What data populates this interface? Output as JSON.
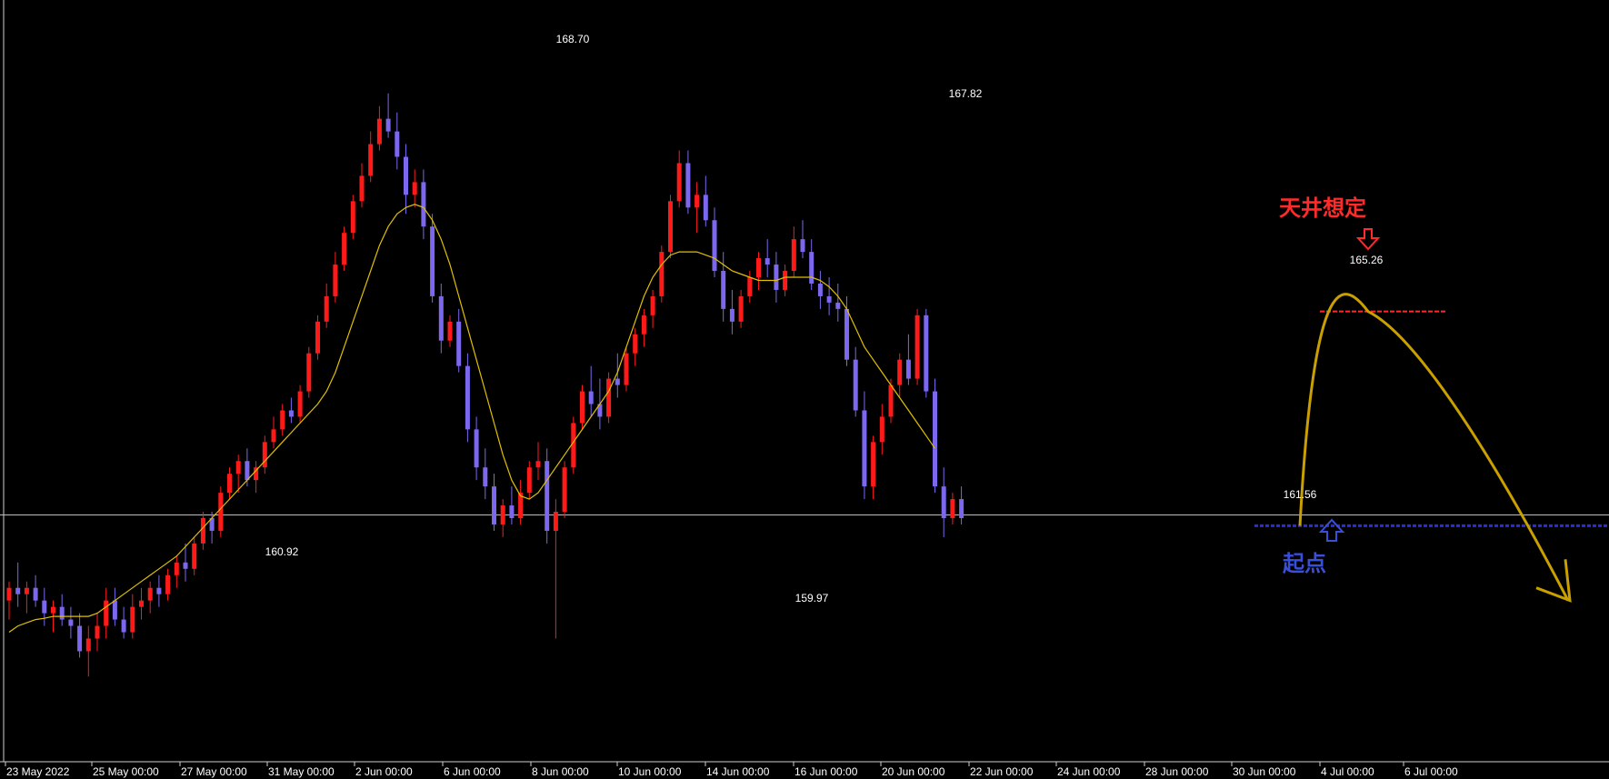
{
  "chart_data": {
    "type": "candlestick",
    "instrument_hint": "",
    "x_axis_labels": [
      "23 May 2022",
      "25 May 00:00",
      "27 May 00:00",
      "31 May 00:00",
      "2 Jun 00:00",
      "6 Jun 00:00",
      "8 Jun 00:00",
      "10 Jun 00:00",
      "14 Jun 00:00",
      "16 Jun 00:00",
      "20 Jun 00:00",
      "22 Jun 00:00",
      "24 Jun 00:00",
      "28 Jun 00:00",
      "30 Jun 00:00",
      "4 Jul 00:00",
      "6 Jul 00:00"
    ],
    "price_range": [
      158.2,
      169.6
    ],
    "price_labels": [
      {
        "text": "168.70",
        "value": 168.7
      },
      {
        "text": "167.82",
        "value": 167.82
      },
      {
        "text": "165.26",
        "value": 165.26
      },
      {
        "text": "161.56",
        "value": 161.56
      },
      {
        "text": "160.92",
        "value": 160.92
      },
      {
        "text": "159.97",
        "value": 159.97
      }
    ],
    "horizontal_lines": [
      {
        "name": "reference-line",
        "value": 162.05,
        "color": "#bdbdbd"
      },
      {
        "name": "start-support-line",
        "value": 161.88,
        "color": "#2b2fd1",
        "dashed": true
      },
      {
        "name": "ceiling-line",
        "value": 165.26,
        "color": "#ff2a2a",
        "dashed": true
      }
    ],
    "annotations": {
      "ceiling_text": "天井想定",
      "start_text": "起点"
    },
    "colors": {
      "bull": "#ff1a1a",
      "bear": "#7b68ee",
      "ma": "#e0c000",
      "arrow": "#c9a000"
    },
    "candles": [
      [
        160.7,
        161.0,
        160.4,
        160.9
      ],
      [
        160.9,
        161.3,
        160.6,
        160.8
      ],
      [
        160.8,
        161.0,
        160.5,
        160.9
      ],
      [
        160.9,
        161.1,
        160.6,
        160.7
      ],
      [
        160.7,
        160.9,
        160.3,
        160.5
      ],
      [
        160.5,
        160.7,
        160.2,
        160.6
      ],
      [
        160.6,
        160.8,
        160.3,
        160.4
      ],
      [
        160.4,
        160.6,
        160.1,
        160.3
      ],
      [
        160.3,
        160.5,
        159.8,
        159.9
      ],
      [
        159.9,
        160.3,
        159.5,
        160.1
      ],
      [
        160.1,
        160.5,
        159.9,
        160.3
      ],
      [
        160.3,
        160.9,
        160.1,
        160.7
      ],
      [
        160.7,
        160.9,
        160.3,
        160.4
      ],
      [
        160.4,
        160.6,
        160.1,
        160.2
      ],
      [
        160.2,
        160.8,
        160.1,
        160.6
      ],
      [
        160.6,
        160.9,
        160.4,
        160.7
      ],
      [
        160.7,
        161.0,
        160.5,
        160.9
      ],
      [
        160.9,
        161.1,
        160.6,
        160.8
      ],
      [
        160.8,
        161.2,
        160.7,
        161.1
      ],
      [
        161.1,
        161.4,
        160.9,
        161.3
      ],
      [
        161.3,
        161.6,
        161.0,
        161.2
      ],
      [
        161.2,
        161.7,
        161.1,
        161.6
      ],
      [
        161.6,
        162.1,
        161.5,
        162.0
      ],
      [
        162.0,
        162.1,
        161.6,
        161.8
      ],
      [
        161.8,
        162.5,
        161.7,
        162.4
      ],
      [
        162.4,
        162.8,
        162.3,
        162.7
      ],
      [
        162.7,
        163.0,
        162.4,
        162.9
      ],
      [
        162.9,
        163.1,
        162.5,
        162.6
      ],
      [
        162.6,
        162.9,
        162.4,
        162.8
      ],
      [
        162.8,
        163.3,
        162.7,
        163.2
      ],
      [
        163.2,
        163.6,
        163.1,
        163.4
      ],
      [
        163.4,
        163.8,
        163.3,
        163.7
      ],
      [
        163.7,
        163.9,
        163.5,
        163.6
      ],
      [
        163.6,
        164.1,
        163.5,
        164.0
      ],
      [
        164.0,
        164.7,
        163.9,
        164.6
      ],
      [
        164.6,
        165.2,
        164.5,
        165.1
      ],
      [
        165.1,
        165.7,
        165.0,
        165.5
      ],
      [
        165.5,
        166.2,
        165.4,
        166.0
      ],
      [
        166.0,
        166.6,
        165.9,
        166.5
      ],
      [
        166.5,
        167.1,
        166.4,
        167.0
      ],
      [
        167.0,
        167.6,
        166.9,
        167.4
      ],
      [
        167.4,
        168.1,
        167.3,
        167.9
      ],
      [
        167.9,
        168.5,
        167.8,
        168.3
      ],
      [
        168.3,
        168.7,
        168.0,
        168.1
      ],
      [
        168.1,
        168.4,
        167.5,
        167.7
      ],
      [
        167.7,
        167.9,
        166.8,
        167.1
      ],
      [
        167.1,
        167.5,
        166.9,
        167.3
      ],
      [
        167.3,
        167.5,
        166.4,
        166.6
      ],
      [
        166.6,
        166.8,
        165.4,
        165.5
      ],
      [
        165.5,
        165.7,
        164.6,
        164.8
      ],
      [
        164.8,
        165.2,
        164.7,
        165.1
      ],
      [
        165.1,
        165.3,
        164.3,
        164.4
      ],
      [
        164.4,
        164.6,
        163.2,
        163.4
      ],
      [
        163.4,
        163.6,
        162.6,
        162.8
      ],
      [
        162.8,
        163.1,
        162.3,
        162.5
      ],
      [
        162.5,
        162.7,
        161.8,
        161.9
      ],
      [
        161.9,
        162.3,
        161.7,
        162.2
      ],
      [
        162.2,
        162.5,
        161.9,
        162.0
      ],
      [
        162.0,
        162.6,
        161.9,
        162.4
      ],
      [
        162.4,
        162.9,
        162.3,
        162.8
      ],
      [
        162.8,
        163.2,
        162.6,
        162.9
      ],
      [
        162.9,
        163.1,
        161.6,
        161.8
      ],
      [
        161.8,
        162.3,
        160.1,
        162.1
      ],
      [
        162.1,
        162.9,
        162.0,
        162.8
      ],
      [
        162.8,
        163.6,
        162.7,
        163.5
      ],
      [
        163.5,
        164.1,
        163.4,
        164.0
      ],
      [
        164.0,
        164.4,
        163.6,
        163.8
      ],
      [
        163.8,
        164.2,
        163.4,
        163.6
      ],
      [
        163.6,
        164.3,
        163.5,
        164.2
      ],
      [
        164.2,
        164.6,
        163.9,
        164.1
      ],
      [
        164.1,
        164.7,
        164.0,
        164.6
      ],
      [
        164.6,
        165.0,
        164.4,
        164.9
      ],
      [
        164.9,
        165.3,
        164.7,
        165.2
      ],
      [
        165.2,
        165.6,
        165.0,
        165.5
      ],
      [
        165.5,
        166.3,
        165.4,
        166.2
      ],
      [
        166.2,
        167.1,
        166.1,
        167.0
      ],
      [
        167.0,
        167.8,
        166.9,
        167.6
      ],
      [
        167.6,
        167.8,
        166.8,
        166.9
      ],
      [
        166.9,
        167.3,
        166.5,
        167.1
      ],
      [
        167.1,
        167.4,
        166.6,
        166.7
      ],
      [
        166.7,
        166.9,
        165.8,
        165.9
      ],
      [
        165.9,
        166.2,
        165.1,
        165.3
      ],
      [
        165.3,
        165.6,
        164.9,
        165.1
      ],
      [
        165.1,
        165.6,
        165.0,
        165.5
      ],
      [
        165.5,
        165.9,
        165.4,
        165.8
      ],
      [
        165.8,
        166.2,
        165.6,
        166.1
      ],
      [
        166.1,
        166.4,
        165.8,
        166.0
      ],
      [
        166.0,
        166.2,
        165.4,
        165.6
      ],
      [
        165.6,
        166.0,
        165.5,
        165.9
      ],
      [
        165.9,
        166.6,
        165.8,
        166.4
      ],
      [
        166.4,
        166.7,
        166.1,
        166.2
      ],
      [
        166.2,
        166.4,
        165.6,
        165.7
      ],
      [
        165.7,
        165.9,
        165.3,
        165.5
      ],
      [
        165.5,
        165.8,
        165.2,
        165.4
      ],
      [
        165.4,
        165.7,
        165.1,
        165.3
      ],
      [
        165.3,
        165.5,
        164.4,
        164.5
      ],
      [
        164.5,
        164.7,
        163.6,
        163.7
      ],
      [
        163.7,
        164.0,
        162.3,
        162.5
      ],
      [
        162.5,
        163.3,
        162.3,
        163.2
      ],
      [
        163.2,
        163.8,
        163.0,
        163.6
      ],
      [
        163.6,
        164.2,
        163.5,
        164.1
      ],
      [
        164.1,
        164.6,
        163.9,
        164.5
      ],
      [
        164.5,
        164.9,
        164.1,
        164.2
      ],
      [
        164.2,
        165.3,
        164.1,
        165.2
      ],
      [
        165.2,
        165.3,
        163.9,
        164.0
      ],
      [
        164.0,
        164.2,
        162.4,
        162.5
      ],
      [
        162.5,
        162.8,
        161.7,
        162.0
      ],
      [
        162.0,
        162.4,
        161.9,
        162.3
      ],
      [
        162.3,
        162.5,
        161.9,
        162.0
      ]
    ],
    "ma": [
      160.2,
      160.3,
      160.35,
      160.4,
      160.42,
      160.45,
      160.45,
      160.45,
      160.45,
      160.45,
      160.5,
      160.6,
      160.7,
      160.8,
      160.9,
      161.0,
      161.1,
      161.2,
      161.3,
      161.4,
      161.55,
      161.7,
      161.85,
      162.0,
      162.15,
      162.3,
      162.45,
      162.6,
      162.75,
      162.9,
      163.05,
      163.2,
      163.35,
      163.5,
      163.65,
      163.8,
      164.0,
      164.3,
      164.7,
      165.1,
      165.5,
      165.9,
      166.3,
      166.6,
      166.8,
      166.9,
      166.95,
      166.9,
      166.7,
      166.4,
      166.0,
      165.5,
      165.0,
      164.5,
      164.0,
      163.5,
      163.0,
      162.6,
      162.35,
      162.3,
      162.4,
      162.6,
      162.8,
      163.0,
      163.2,
      163.4,
      163.6,
      163.8,
      164.0,
      164.3,
      164.7,
      165.1,
      165.5,
      165.8,
      166.0,
      166.15,
      166.2,
      166.2,
      166.2,
      166.15,
      166.1,
      166.0,
      165.9,
      165.85,
      165.8,
      165.75,
      165.75,
      165.75,
      165.8,
      165.8,
      165.8,
      165.8,
      165.75,
      165.65,
      165.5,
      165.3,
      165.0,
      164.7,
      164.5,
      164.3,
      164.1,
      163.9,
      163.7,
      163.5,
      163.3,
      163.1
    ]
  }
}
